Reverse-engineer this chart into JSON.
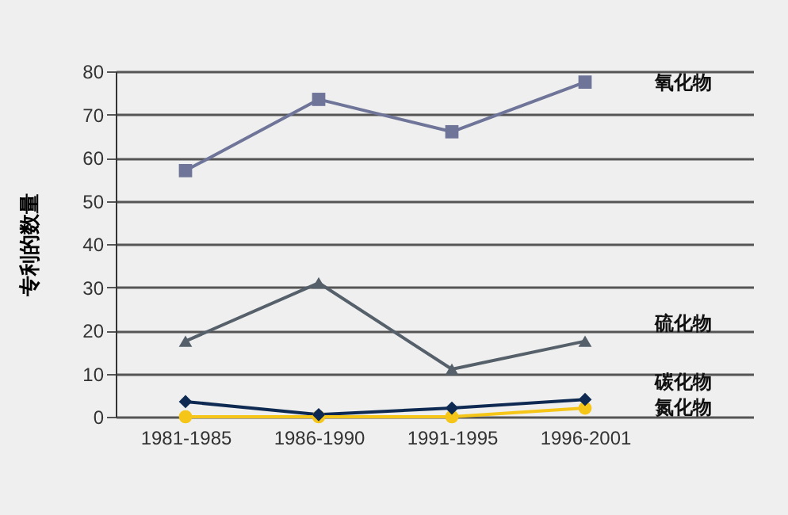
{
  "chart_data": {
    "type": "line",
    "ylabel": "专利的数量",
    "categories": [
      "1981-1985",
      "1986-1990",
      "1991-1995",
      "1996-2001"
    ],
    "ylim": [
      0,
      80
    ],
    "yticks": [
      0,
      10,
      20,
      30,
      40,
      50,
      60,
      70,
      80
    ],
    "grid": "y",
    "series": [
      {
        "name": "氧化物",
        "color": "#6f7499",
        "marker": "square",
        "values": [
          57,
          73.5,
          66,
          77.5
        ]
      },
      {
        "name": "硫化物",
        "color": "#56606a",
        "marker": "triangle",
        "values": [
          17.5,
          31,
          11,
          17.5
        ]
      },
      {
        "name": "碳化物",
        "color": "#0e2a52",
        "marker": "diamond",
        "values": [
          3.5,
          0.5,
          2,
          4
        ]
      },
      {
        "name": "氮化物",
        "color": "#f5c518",
        "marker": "circle",
        "values": [
          0,
          0,
          0,
          2
        ]
      }
    ]
  }
}
